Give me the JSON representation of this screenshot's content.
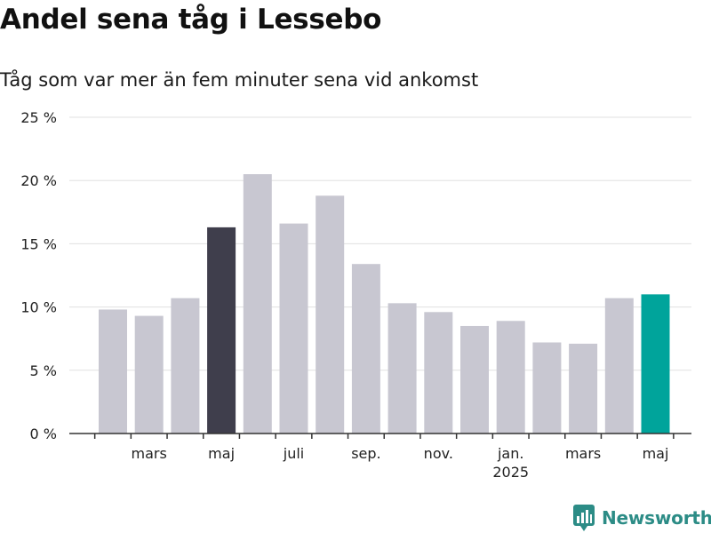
{
  "title": "Andel sena tåg i Lessebo",
  "subtitle": "Tåg som var mer än fem minuter sena vid ankomst",
  "brand": {
    "name": "Newsworthy"
  },
  "colors": {
    "bar_default": "#c8c7d1",
    "bar_highlight": "#3f3e4c",
    "bar_latest": "#00a49b",
    "grid": "#e0e0e0",
    "axis": "#333333",
    "brand": "#2c8c86"
  },
  "chart_data": {
    "type": "bar",
    "title": "Andel sena tåg i Lessebo",
    "subtitle": "Tåg som var mer än fem minuter sena vid ankomst",
    "xlabel": "",
    "ylabel": "",
    "ylim": [
      0,
      25
    ],
    "yticks": [
      0,
      5,
      10,
      15,
      20,
      25
    ],
    "ytick_labels": [
      "0 %",
      "5 %",
      "10 %",
      "15 %",
      "20 %",
      "25 %"
    ],
    "categories": [
      "2024-02",
      "2024-03",
      "2024-04",
      "2024-05",
      "2024-06",
      "2024-07",
      "2024-08",
      "2024-09",
      "2024-10",
      "2024-11",
      "2024-12",
      "2025-01",
      "2025-02",
      "2025-03",
      "2025-04",
      "2025-05"
    ],
    "values": [
      9.8,
      9.3,
      10.7,
      16.3,
      20.5,
      16.6,
      18.8,
      13.4,
      10.3,
      9.6,
      8.5,
      8.9,
      7.2,
      7.1,
      10.7,
      11.0
    ],
    "highlight": {
      "2024-05": "bar_highlight",
      "2025-05": "bar_latest"
    },
    "xtick_labels": [
      {
        "at": 1,
        "label": "mars"
      },
      {
        "at": 3,
        "label": "maj"
      },
      {
        "at": 5,
        "label": "juli"
      },
      {
        "at": 7,
        "label": "sep."
      },
      {
        "at": 9,
        "label": "nov."
      },
      {
        "at": 11,
        "label": "jan.",
        "sublabel": "2025"
      },
      {
        "at": 13,
        "label": "mars"
      },
      {
        "at": 15,
        "label": "maj"
      }
    ],
    "grid": true,
    "legend": "none"
  }
}
